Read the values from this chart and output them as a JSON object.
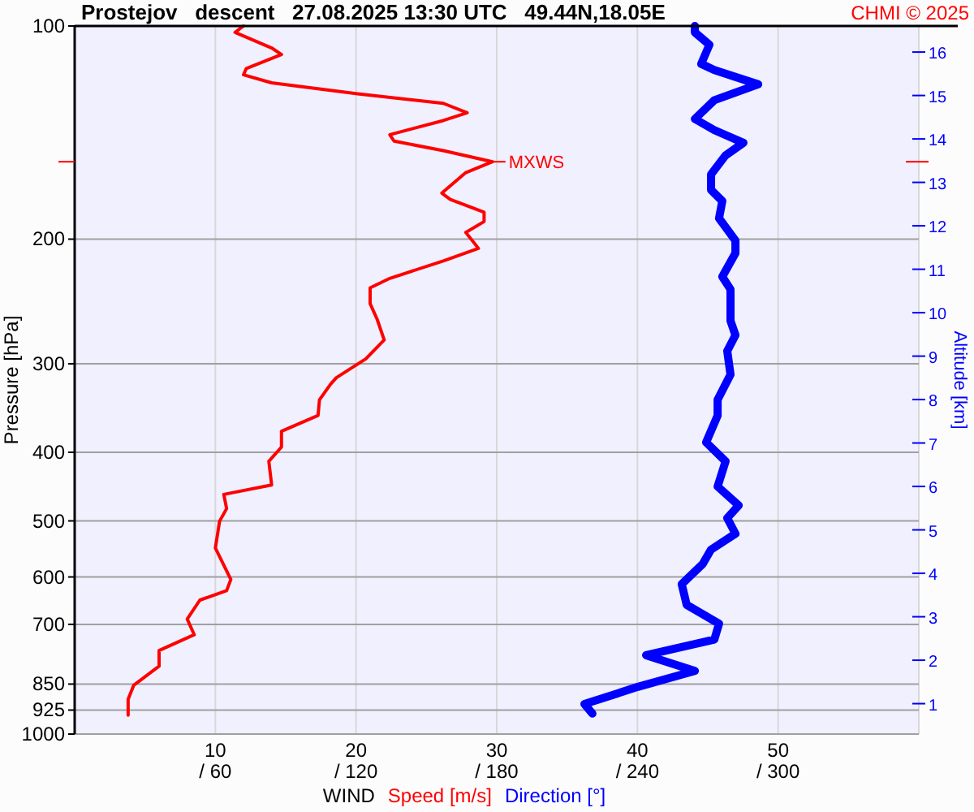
{
  "chart_data": {
    "type": "line",
    "title": "Prostejov   descent   27.08.2025 13:30 UTC   49.44N,18.05E",
    "xlabel": "WIND",
    "ylabel": "Pressure [hPa]",
    "y2label": "Altitude [km]",
    "annotations": [
      "CHMI © 2025",
      {
        "text": "MXWS",
        "x": 29.7,
        "y": 155.5
      }
    ],
    "log": "y",
    "grid": true,
    "legend": "bottom",
    "line_style": "solid",
    "marker": "none",
    "xlim": [
      0,
      60
    ],
    "xticks": [
      10,
      20,
      30,
      40,
      50
    ],
    "x2lim": [
      0,
      360
    ],
    "x2ticks": [
      {
        "value": 60,
        "label": "/ 60"
      },
      {
        "value": 120,
        "label": "/ 120"
      },
      {
        "value": 180,
        "label": "/ 180"
      },
      {
        "value": 240,
        "label": "/ 240"
      },
      {
        "value": 300,
        "label": "/ 300"
      }
    ],
    "orientation": "horizontal",
    "ylim": [
      1000,
      100
    ],
    "yticks": [
      100,
      200,
      300,
      400,
      500,
      600,
      700,
      850,
      925,
      1000
    ],
    "y2lim": [
      0.3,
      16.6
    ],
    "y2ticks": [
      1,
      2,
      3,
      4,
      5,
      6,
      7,
      8,
      9,
      10,
      11,
      12,
      13,
      14,
      15,
      16
    ],
    "series": [
      {
        "name": "Speed [m/s]",
        "color": "#ff0000",
        "values": [
          12.0,
          11.4,
          14.0,
          14.7,
          12.2,
          12.0,
          14.0,
          20.1,
          26.2,
          27.9,
          26.2,
          22.4,
          22.7,
          26.2,
          29.7,
          27.8,
          26.1,
          26.7,
          29.1,
          29.1,
          27.8,
          28.7,
          26.2,
          22.4,
          21.0,
          21.0,
          21.5,
          22.0,
          20.7,
          18.6,
          18.2,
          17.4,
          17.3,
          14.7,
          14.7,
          13.8,
          14.0,
          10.6,
          10.8,
          10.3,
          10.0,
          11.1,
          10.8,
          8.9,
          8.0,
          8.5,
          6.0,
          6.0,
          4.2,
          3.8,
          3.8
        ],
        "x": [
          100,
          102.1,
          107.4,
          109.7,
          114.8,
          117.2,
          120.3,
          124.7,
          128.6,
          132.6,
          136.0,
          142.4,
          145.4,
          150.0,
          155.5,
          161.1,
          172.2,
          175.8,
          183.2,
          188.9,
          195.7,
          206.1,
          214.7,
          227.2,
          234.3,
          246.6,
          259.6,
          277.5,
          295.1,
          313.8,
          320.3,
          337.2,
          354.9,
          373.6,
          393.2,
          411.9,
          444.8,
          458.7,
          480.4,
          500.5,
          546.0,
          604.9,
          627.2,
          646.8,
          687.9,
          724.0,
          762.1,
          802.0,
          853.1,
          893.4,
          940.4
        ]
      },
      {
        "name": "Direction [°]",
        "color": "#0000ff",
        "axis": "x2",
        "values": [
          264.5,
          264.5,
          270.7,
          267.2,
          272.8,
          291.5,
          272.8,
          264.5,
          272.8,
          285.2,
          277.6,
          271.4,
          271.4,
          276.2,
          274.8,
          281.8,
          281.8,
          276.2,
          279.7,
          279.7,
          281.8,
          278.3,
          279.7,
          274.2,
          274.2,
          269.3,
          277.6,
          274.2,
          283.2,
          278.3,
          281.8,
          271.4,
          267.9,
          258.9,
          261.0,
          274.8,
          272.8,
          243.7,
          264.5,
          240.2,
          217.4,
          220.8
        ],
        "x": [
          100,
          102.1,
          106.3,
          113.1,
          115.4,
          120.9,
          127.3,
          135.3,
          140.3,
          146.2,
          152.3,
          162.0,
          170.4,
          176.7,
          186.9,
          200.9,
          209.3,
          226.0,
          235.5,
          260.9,
          273.3,
          287.7,
          310.6,
          337.2,
          354.9,
          387.3,
          411.9,
          447.1,
          475.5,
          495.4,
          521.3,
          548.9,
          574.9,
          614.3,
          656.9,
          698.6,
          735.3,
          773.8,
          814.5,
          857.6,
          907.1,
          935.4
        ]
      }
    ]
  }
}
